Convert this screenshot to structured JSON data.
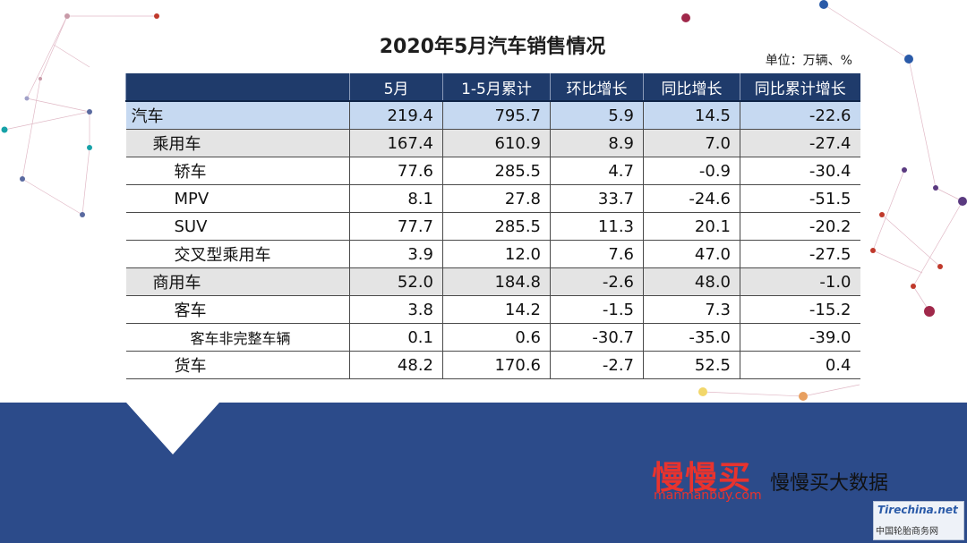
{
  "title": "2020年5月汽车销售情况",
  "unit_note": "单位：万辆、%",
  "brand": {
    "logo_text": "慢慢买",
    "url": "manmanbuy.com",
    "tagline": "慢慢买大数据"
  },
  "corner_logo": {
    "logo_text": "Tirechina.net",
    "caption": "中国轮胎商务网"
  },
  "colors": {
    "band": "#2c4b8a",
    "header_bg": "#1f3b6b",
    "level0_row": "#c6d9f1",
    "level1_row": "#e4e4e4",
    "brand_red": "#e8332e"
  },
  "chart_data": {
    "type": "table",
    "columns": [
      "",
      "5月",
      "1-5月累计",
      "环比增长",
      "同比增长",
      "同比累计增长"
    ],
    "rows": [
      {
        "name": "汽车",
        "level": 0,
        "values": [
          "219.4",
          "795.7",
          "5.9",
          "14.5",
          "-22.6"
        ]
      },
      {
        "name": "乘用车",
        "level": 1,
        "values": [
          "167.4",
          "610.9",
          "8.9",
          "7.0",
          "-27.4"
        ]
      },
      {
        "name": "轿车",
        "level": 2,
        "values": [
          "77.6",
          "285.5",
          "4.7",
          "-0.9",
          "-30.4"
        ]
      },
      {
        "name": "MPV",
        "level": 2,
        "values": [
          "8.1",
          "27.8",
          "33.7",
          "-24.6",
          "-51.5"
        ]
      },
      {
        "name": "SUV",
        "level": 2,
        "values": [
          "77.7",
          "285.5",
          "11.3",
          "20.1",
          "-20.2"
        ]
      },
      {
        "name": "交叉型乘用车",
        "level": 2,
        "values": [
          "3.9",
          "12.0",
          "7.6",
          "47.0",
          "-27.5"
        ]
      },
      {
        "name": "商用车",
        "level": 1,
        "values": [
          "52.0",
          "184.8",
          "-2.6",
          "48.0",
          "-1.0"
        ]
      },
      {
        "name": "客车",
        "level": 2,
        "values": [
          "3.8",
          "14.2",
          "-1.5",
          "7.3",
          "-15.2"
        ]
      },
      {
        "name": "客车非完整车辆",
        "level": 3,
        "values": [
          "0.1",
          "0.6",
          "-30.7",
          "-35.0",
          "-39.0"
        ]
      },
      {
        "name": "货车",
        "level": 2,
        "values": [
          "48.2",
          "170.6",
          "-2.7",
          "52.5",
          "0.4"
        ]
      }
    ]
  }
}
